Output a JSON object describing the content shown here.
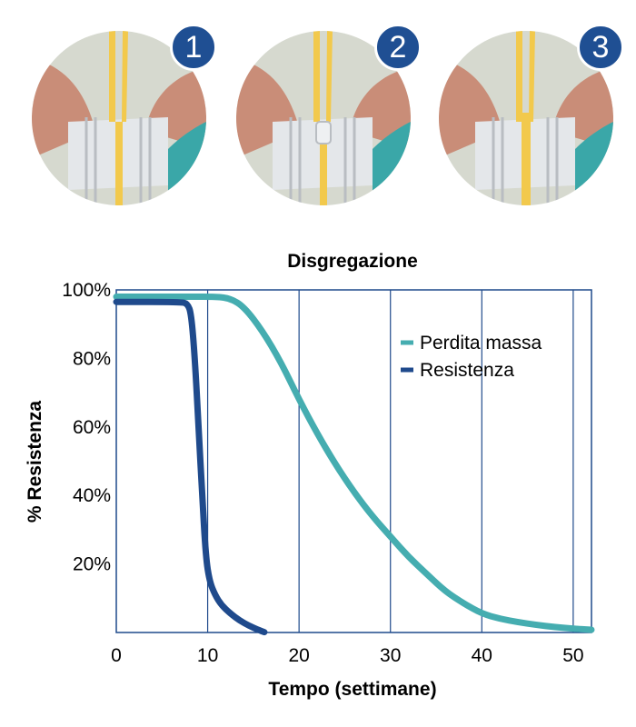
{
  "panels": [
    {
      "badge": "1",
      "colors": {
        "nerve": "#f2c94c",
        "muscle": "#c98d78",
        "tendon": "#e4e7ea",
        "accent": "#3aa7a8"
      }
    },
    {
      "badge": "2",
      "colors": {
        "nerve": "#f2c94c",
        "muscle": "#c98d78",
        "tendon": "#e4e7ea",
        "accent": "#3aa7a8"
      }
    },
    {
      "badge": "3",
      "colors": {
        "nerve": "#f2c94c",
        "muscle": "#c98d78",
        "tendon": "#e4e7ea",
        "accent": "#3aa7a8"
      }
    }
  ],
  "chart_data": {
    "type": "line",
    "title": "Disgregazione",
    "xlabel": "Tempo (settimane)",
    "ylabel": "% Resistenza",
    "xlim": [
      0,
      52
    ],
    "ylim": [
      0,
      100
    ],
    "x_ticks": [
      0,
      10,
      20,
      30,
      40,
      50
    ],
    "x_tick_labels": [
      "0",
      "10",
      "20",
      "30",
      "40",
      "50"
    ],
    "y_ticks": [
      20,
      40,
      60,
      80,
      100
    ],
    "y_tick_labels": [
      "20%",
      "40%",
      "60%",
      "80%",
      "100%"
    ],
    "grid": "vertical lines at x ticks",
    "legend": "top-right",
    "series": [
      {
        "name": "Perdita massa",
        "color": "#45adb0",
        "points": [
          [
            0,
            98
          ],
          [
            8,
            98
          ],
          [
            11,
            98
          ],
          [
            12.5,
            97.5
          ],
          [
            14,
            95
          ],
          [
            16,
            88
          ],
          [
            18,
            79
          ],
          [
            20,
            68
          ],
          [
            22,
            58
          ],
          [
            24,
            49
          ],
          [
            26,
            41
          ],
          [
            28,
            34
          ],
          [
            30,
            28
          ],
          [
            32,
            22
          ],
          [
            34,
            17
          ],
          [
            36,
            12
          ],
          [
            38,
            8.5
          ],
          [
            40,
            5.5
          ],
          [
            42,
            4
          ],
          [
            44,
            3
          ],
          [
            46,
            2.2
          ],
          [
            48,
            1.6
          ],
          [
            50,
            1.1
          ],
          [
            52,
            0.8
          ]
        ]
      },
      {
        "name": "Resistenza",
        "color": "#1f4a8c",
        "points": [
          [
            0,
            96.5
          ],
          [
            7,
            96.5
          ],
          [
            7.8,
            96
          ],
          [
            8.2,
            93
          ],
          [
            8.6,
            80
          ],
          [
            9,
            60
          ],
          [
            9.4,
            40
          ],
          [
            9.8,
            22
          ],
          [
            10.2,
            15
          ],
          [
            10.8,
            11
          ],
          [
            11.5,
            8
          ],
          [
            12.5,
            5.5
          ],
          [
            13.5,
            3.5
          ],
          [
            14.5,
            2
          ],
          [
            15.5,
            0.8
          ],
          [
            16.2,
            0.1
          ]
        ]
      }
    ]
  }
}
